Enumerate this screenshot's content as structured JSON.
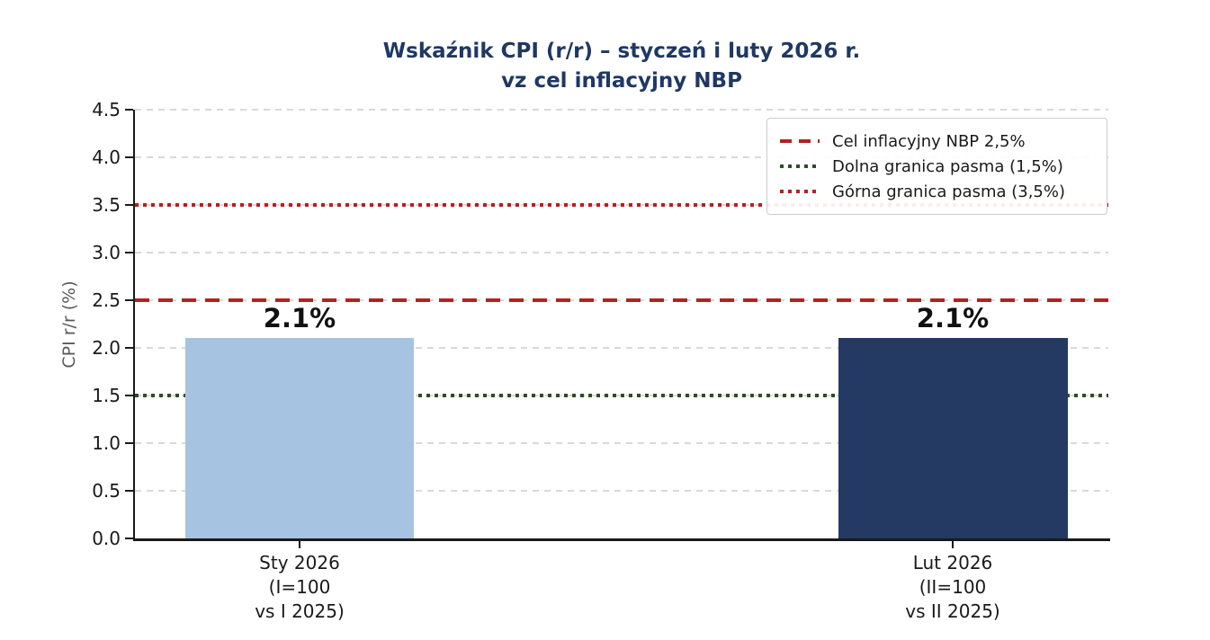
{
  "chart_data": {
    "type": "bar",
    "title_lines": [
      "Wskaźnik CPI (r/r) – styczeń i luty 2026 r.",
      "vz cel inflacyjny NBP"
    ],
    "ylabel": "CPI r/r (%)",
    "categories": [
      "Sty 2026\n(I=100\nvs I 2025)",
      "Lut 2026\n(II=100\nvs II 2025)"
    ],
    "values": [
      2.1,
      2.1
    ],
    "bar_labels": [
      "2.1%",
      "2.1%"
    ],
    "bar_colors": [
      "#a6c3e2",
      "#243a63"
    ],
    "ylim": [
      0,
      4.5
    ],
    "ytick_step": 0.5,
    "yticks": [
      "0.0",
      "0.5",
      "1.0",
      "1.5",
      "2.0",
      "2.5",
      "3.0",
      "3.5",
      "4.0",
      "4.5"
    ],
    "grid": "horizontal dashed",
    "legend_position": "upper right",
    "reference_lines": [
      {
        "label": "Cel inflacyjny NBP 2,5%",
        "value": 2.5,
        "color": "#b22222",
        "style": "dashed"
      },
      {
        "label": "Dolna granica pasma (1,5%)",
        "value": 1.5,
        "color": "#2e4d26",
        "style": "dotted"
      },
      {
        "label": "Górna granica pasma (3,5%)",
        "value": 3.5,
        "color": "#b22222",
        "style": "dotted"
      }
    ],
    "colors": {
      "title": "#1f3864",
      "axis": "#1a1a1a",
      "ylabel_text": "#595959",
      "grid": "#d9d9d9"
    }
  }
}
